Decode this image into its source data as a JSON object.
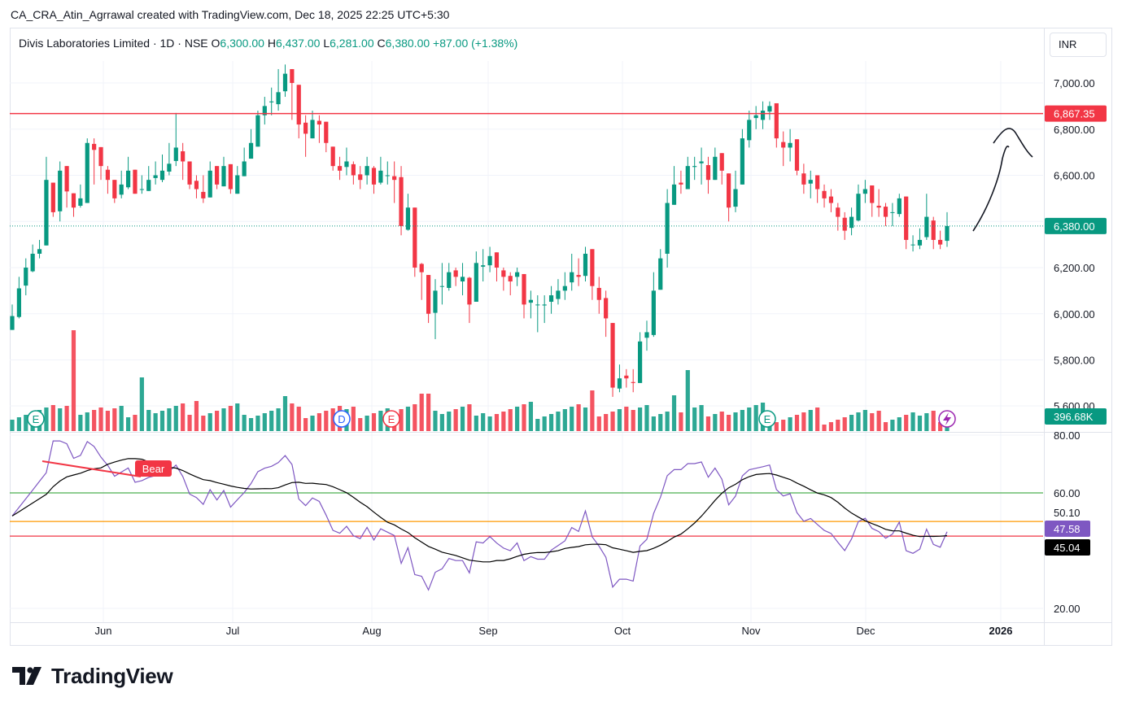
{
  "header": {
    "attribution": "CA_CRA_Atin_Agrrawal created with TradingView.com, Dec 18, 2025 22:25 UTC+5:30"
  },
  "legend": {
    "symbol": "Divis Laboratories Limited · 1D · NSE",
    "o_label": "O",
    "o_value": "6,300.00",
    "h_label": "H",
    "h_value": "6,437.00",
    "l_label": "L",
    "l_value": "6,281.00",
    "c_label": "C",
    "c_value": "6,380.00",
    "change": "+87.00 (+1.38%)"
  },
  "currency": "INR",
  "brand": {
    "name": "TradingView"
  },
  "colors": {
    "up": "#089981",
    "down": "#f23645",
    "rsi": "#7e57c2",
    "rsi_ma": "#000000",
    "level_60": "#4caf50",
    "level_50": "#ff9800",
    "level_45": "#f23645"
  },
  "chart_data": [
    {
      "type": "candlestick",
      "name": "price",
      "y_axis_ticks": [
        "7,000.00",
        "6,800.00",
        "6,600.00",
        "6,200.00",
        "6,000.00",
        "5,800.00",
        "5,600.00"
      ],
      "ylim": [
        5560,
        7110
      ],
      "x_axis_ticks": [
        "Jun",
        "Jul",
        "Aug",
        "Sep",
        "Oct",
        "Nov",
        "Dec",
        "2026"
      ],
      "resistance_line": 6867.35,
      "resistance_label": "6,867.35",
      "last_price": 6380,
      "last_price_label": "6,380.00",
      "volume_label": "396.68K",
      "closes": [
        5990,
        6110,
        6200,
        6260,
        6280,
        6580,
        6440,
        6620,
        6530,
        6460,
        6500,
        6740,
        6710,
        6640,
        6580,
        6500,
        6560,
        6620,
        6520,
        6540,
        6580,
        6600,
        6620,
        6650,
        6720,
        6660,
        6560,
        6540,
        6500,
        6620,
        6560,
        6640,
        6540,
        6600,
        6660,
        6740,
        6860,
        6900,
        6920,
        6960,
        7040,
        7000,
        6820,
        6780,
        6840,
        6820,
        6740,
        6640,
        6620,
        6660,
        6600,
        6580,
        6640,
        6560,
        6620,
        6600,
        6580,
        6380,
        6460,
        6200,
        6180,
        6000,
        6100,
        6120,
        6180,
        6160,
        6160,
        6040,
        6220,
        6210,
        6250,
        6200,
        6160,
        6140,
        6180,
        6040,
        6060,
        6040,
        6040,
        6080,
        6100,
        6120,
        6180,
        6160,
        6260,
        6120,
        6060,
        5980,
        5680,
        5720,
        5720,
        5700,
        5880,
        5920,
        6100,
        6240,
        6480,
        6560,
        6560,
        6640,
        6640,
        6660,
        6580,
        6680,
        6620,
        6460,
        6540,
        6760,
        6840,
        6860,
        6880,
        6900,
        6760,
        6720,
        6740,
        6620,
        6560,
        6580,
        6540,
        6500,
        6480,
        6420,
        6360,
        6420,
        6520,
        6540,
        6480,
        6460,
        6420,
        6440,
        6500,
        6320,
        6300,
        6320,
        6420,
        6320,
        6300,
        6380
      ],
      "highs": [
        6040,
        6160,
        6240,
        6300,
        6320,
        6680,
        6560,
        6660,
        6580,
        6520,
        6560,
        6760,
        6760,
        6690,
        6640,
        6560,
        6620,
        6680,
        6620,
        6600,
        6640,
        6660,
        6690,
        6740,
        6870,
        6740,
        6660,
        6600,
        6600,
        6660,
        6620,
        6680,
        6620,
        6640,
        6720,
        6800,
        6880,
        6940,
        6980,
        7060,
        7080,
        7040,
        6900,
        6860,
        6880,
        6860,
        6800,
        6720,
        6680,
        6720,
        6660,
        6640,
        6680,
        6640,
        6680,
        6660,
        6660,
        6640,
        6520,
        6380,
        6220,
        6100,
        6150,
        6220,
        6220,
        6200,
        6220,
        6160,
        6270,
        6280,
        6290,
        6240,
        6200,
        6180,
        6200,
        6120,
        6100,
        6080,
        6080,
        6120,
        6150,
        6180,
        6260,
        6240,
        6290,
        6240,
        6160,
        6100,
        5780,
        5780,
        5760,
        5760,
        5920,
        5970,
        6180,
        6280,
        6540,
        6640,
        6620,
        6680,
        6680,
        6720,
        6680,
        6720,
        6680,
        6600,
        6620,
        6800,
        6880,
        6900,
        6920,
        6920,
        6880,
        6790,
        6800,
        6700,
        6650,
        6620,
        6580,
        6560,
        6540,
        6480,
        6440,
        6460,
        6560,
        6580,
        6540,
        6540,
        6480,
        6480,
        6520,
        6500,
        6340,
        6370,
        6520,
        6420,
        6360,
        6440
      ],
      "lows": [
        5940,
        5980,
        6080,
        6180,
        6240,
        6320,
        6420,
        6400,
        6460,
        6420,
        6460,
        6520,
        6560,
        6580,
        6520,
        6480,
        6500,
        6540,
        6520,
        6520,
        6540,
        6560,
        6570,
        6600,
        6640,
        6580,
        6540,
        6500,
        6480,
        6540,
        6540,
        6560,
        6520,
        6560,
        6600,
        6680,
        6760,
        6820,
        6860,
        6880,
        6940,
        6840,
        6760,
        6680,
        6760,
        6740,
        6700,
        6620,
        6580,
        6600,
        6560,
        6540,
        6560,
        6520,
        6560,
        6560,
        6480,
        6340,
        6360,
        6160,
        6060,
        5960,
        5890,
        6040,
        6100,
        6120,
        6080,
        5960,
        6060,
        6140,
        6180,
        6140,
        6100,
        6080,
        6120,
        5980,
        5980,
        5920,
        5960,
        6000,
        6040,
        6060,
        6100,
        6120,
        6140,
        6060,
        6000,
        5900,
        5640,
        5660,
        5680,
        5660,
        5720,
        5840,
        5900,
        6120,
        6200,
        6520,
        6520,
        6560,
        6580,
        6560,
        6520,
        6580,
        6560,
        6400,
        6440,
        6560,
        6720,
        6800,
        6800,
        6840,
        6720,
        6640,
        6660,
        6600,
        6520,
        6500,
        6480,
        6460,
        6440,
        6360,
        6320,
        6340,
        6400,
        6480,
        6420,
        6420,
        6380,
        6380,
        6420,
        6280,
        6270,
        6280,
        6320,
        6280,
        6280,
        6290
      ]
    },
    {
      "type": "line",
      "name": "rsi",
      "y_axis_ticks": [
        "80.00",
        "60.00",
        "50.10",
        "20.00"
      ],
      "ylim": [
        18,
        81
      ],
      "levels": [
        60,
        50.1,
        45.04
      ],
      "rsi_label": "47.58",
      "rsi_ma_label": "45.04",
      "divergence_label": "Bear"
    }
  ]
}
